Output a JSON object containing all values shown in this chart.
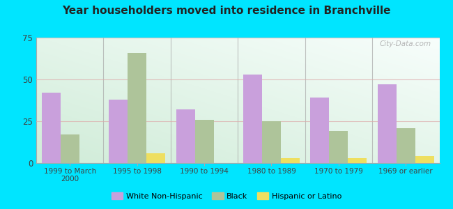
{
  "title": "Year householders moved into residence in Branchville",
  "categories": [
    "1999 to March\n2000",
    "1995 to 1998",
    "1990 to 1994",
    "1980 to 1989",
    "1970 to 1979",
    "1969 or earlier"
  ],
  "white_non_hispanic": [
    42,
    38,
    32,
    53,
    39,
    47
  ],
  "black": [
    17,
    66,
    26,
    25,
    19,
    21
  ],
  "hispanic_or_latino": [
    0,
    6,
    0,
    3,
    3,
    4
  ],
  "color_white": "#c9a0dc",
  "color_black": "#aec49a",
  "color_hispanic": "#eedf60",
  "background_outer": "#00e5ff",
  "background_plot_color1": "#e0f0e8",
  "background_plot_color2": "#f5fbf8",
  "ylim": [
    0,
    75
  ],
  "yticks": [
    0,
    25,
    50,
    75
  ],
  "watermark": "City-Data.com",
  "bar_width": 0.28
}
